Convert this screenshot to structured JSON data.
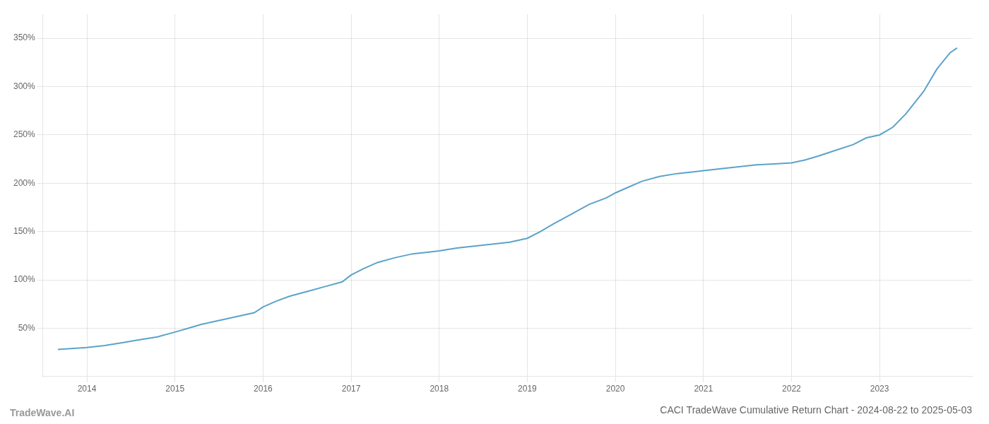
{
  "chart_data": {
    "type": "line",
    "title": "CACI TradeWave Cumulative Return Chart - 2024-08-22 to 2025-05-03",
    "annotations": [
      "TradeWave.AI"
    ],
    "x": [
      2013.67,
      2014.0,
      2014.2,
      2014.4,
      2014.6,
      2014.8,
      2015.0,
      2015.15,
      2015.3,
      2015.5,
      2015.7,
      2015.9,
      2016.0,
      2016.15,
      2016.3,
      2016.5,
      2016.7,
      2016.9,
      2017.0,
      2017.15,
      2017.3,
      2017.5,
      2017.7,
      2017.9,
      2018.0,
      2018.2,
      2018.4,
      2018.6,
      2018.8,
      2019.0,
      2019.15,
      2019.3,
      2019.5,
      2019.7,
      2019.9,
      2020.0,
      2020.15,
      2020.3,
      2020.5,
      2020.7,
      2020.9,
      2021.0,
      2021.2,
      2021.4,
      2021.6,
      2021.8,
      2022.0,
      2022.15,
      2022.3,
      2022.5,
      2022.7,
      2022.85,
      2023.0,
      2023.15,
      2023.3,
      2023.5,
      2023.65,
      2023.8,
      2023.88
    ],
    "values": [
      28,
      30,
      32,
      35,
      38,
      41,
      46,
      50,
      54,
      58,
      62,
      66,
      72,
      78,
      83,
      88,
      93,
      98,
      105,
      112,
      118,
      123,
      127,
      129,
      130,
      133,
      135,
      137,
      139,
      143,
      150,
      158,
      168,
      178,
      185,
      190,
      196,
      202,
      207,
      210,
      212,
      213,
      215,
      217,
      219,
      220,
      221,
      224,
      228,
      234,
      240,
      247,
      250,
      258,
      272,
      295,
      318,
      335,
      340
    ],
    "color": "#5ba3c9",
    "marker": "none",
    "xlim": [
      2013.5,
      2024.05
    ],
    "xticks": [
      2014,
      2015,
      2016,
      2017,
      2018,
      2019,
      2020,
      2021,
      2022,
      2023
    ],
    "ylim": [
      0,
      375
    ],
    "yticks": [
      {
        "value": 50,
        "label": "50%"
      },
      {
        "value": 100,
        "label": "100%"
      },
      {
        "value": 150,
        "label": "150%"
      },
      {
        "value": 200,
        "label": "200%"
      },
      {
        "value": 250,
        "label": "250%"
      },
      {
        "value": 300,
        "label": "300%"
      },
      {
        "value": 350,
        "label": "350%"
      }
    ],
    "grid": true
  }
}
